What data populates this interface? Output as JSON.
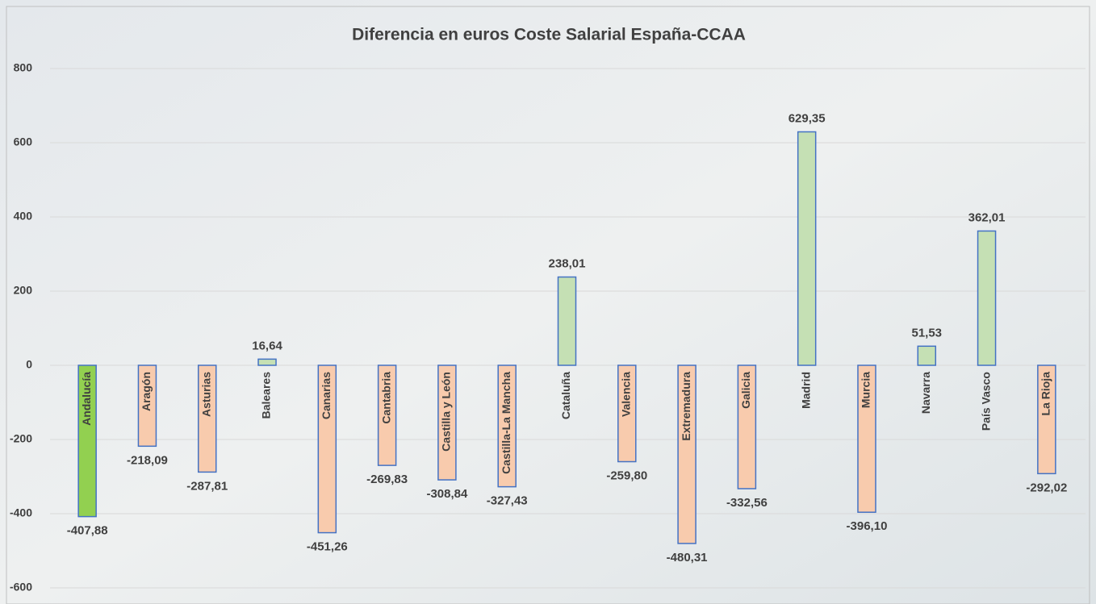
{
  "chart_data": {
    "type": "bar",
    "title": "Diferencia en euros Coste Salarial España-CCAA",
    "categories": [
      "Andalucía",
      "Aragón",
      "Asturias",
      "Baleares",
      "Canarias",
      "Cantabria",
      "Castilla y León",
      "Castilla-La Mancha",
      "Cataluña",
      "Valencia",
      "Extremadura",
      "Galicia",
      "Madrid",
      "Murcia",
      "Navarra",
      "País Vasco",
      "La Rioja"
    ],
    "values": [
      -407.88,
      -218.09,
      -287.81,
      16.64,
      -451.26,
      -269.83,
      -308.84,
      -327.43,
      238.01,
      -259.8,
      -480.31,
      -332.56,
      629.35,
      -396.1,
      51.53,
      362.01,
      -292.02
    ],
    "value_labels": [
      "-407,88",
      "-218,09",
      "-287,81",
      "16,64",
      "-451,26",
      "-269,83",
      "-308,84",
      "-327,43",
      "238,01",
      "-259,80",
      "-480,31",
      "-332,56",
      "629,35",
      "-396,10",
      "51,53",
      "362,01",
      "-292,02"
    ],
    "colors": [
      "#92d050",
      "#f8cbad",
      "#f8cbad",
      "#c5e0b4",
      "#f8cbad",
      "#f8cbad",
      "#f8cbad",
      "#f8cbad",
      "#c5e0b4",
      "#f8cbad",
      "#f8cbad",
      "#f8cbad",
      "#c5e0b4",
      "#f8cbad",
      "#c5e0b4",
      "#c5e0b4",
      "#f8cbad"
    ],
    "edge_color": "#4472c4",
    "ylim": [
      -600,
      800
    ],
    "yticks": [
      -600,
      -400,
      -200,
      0,
      200,
      400,
      600,
      800
    ],
    "grid": true
  }
}
